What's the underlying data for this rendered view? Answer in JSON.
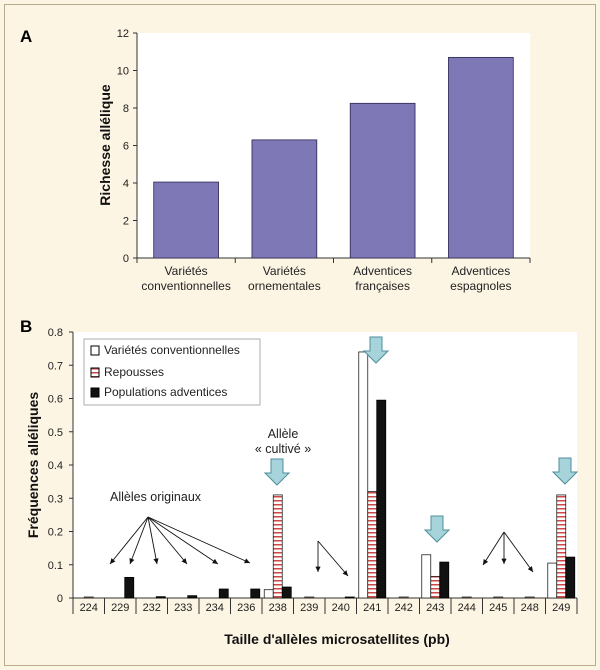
{
  "chart_data": [
    {
      "panel": "A",
      "type": "bar",
      "ylabel": "Richesse allélique",
      "ylim": [
        0,
        12
      ],
      "yticks": [
        0,
        2,
        4,
        6,
        8,
        10,
        12
      ],
      "categories": [
        [
          "Variétés",
          "conventionnelles"
        ],
        [
          "Variétés",
          "ornementales"
        ],
        [
          "Adventices",
          "françaises"
        ],
        [
          "Adventices",
          "espagnoles"
        ]
      ],
      "values": [
        4.05,
        6.3,
        8.25,
        10.7
      ],
      "color": "#7f78b7"
    },
    {
      "panel": "B",
      "type": "bar",
      "xlabel": "Taille d'allèles microsatellites (pb)",
      "ylabel": "Fréquences alléliques",
      "ylim": [
        0,
        0.8
      ],
      "yticks": [
        "0",
        "0.1",
        "0.2",
        "0.3",
        "0.4",
        "0.5",
        "0.6",
        "0.7",
        "0.8"
      ],
      "categories": [
        "224",
        "229",
        "232",
        "233",
        "234",
        "236",
        "238",
        "239",
        "240",
        "241",
        "242",
        "243",
        "244",
        "245",
        "248",
        "249"
      ],
      "series": [
        {
          "name": "Variétés conventionnelles",
          "style": "white",
          "values": [
            0,
            0,
            0,
            0,
            0,
            0,
            0.025,
            0,
            0,
            0.74,
            0,
            0.13,
            0,
            0,
            0,
            0.105
          ]
        },
        {
          "name": "Repousses",
          "style": "striped",
          "values": [
            0.003,
            0,
            0,
            0,
            0,
            0,
            0.31,
            0.003,
            0,
            0.32,
            0.003,
            0.065,
            0.003,
            0.003,
            0.003,
            0.31
          ]
        },
        {
          "name": "Populations adventices",
          "style": "black",
          "values": [
            0,
            0.062,
            0.004,
            0.007,
            0.027,
            0.027,
            0.033,
            0,
            0.003,
            0.595,
            0,
            0.108,
            0,
            0,
            0,
            0.123
          ]
        }
      ],
      "annotations": {
        "originaux": "Allèles originaux",
        "cultive_line1": "Allèle",
        "cultive_line2": "« cultivé »"
      }
    }
  ]
}
